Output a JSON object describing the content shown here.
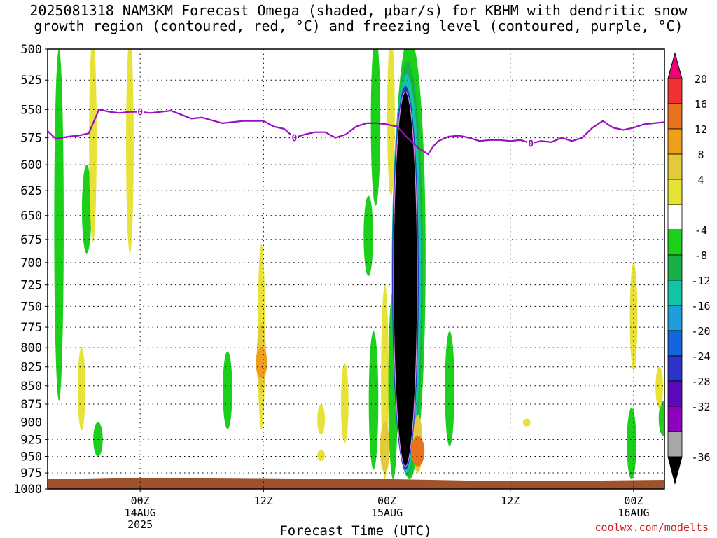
{
  "title_line1": "2025081318 NAM3KM Forecast Omega (shaded, μbar/s) for KBHM with dendritic snow",
  "title_line2": "growth region (contoured, red, °C) and freezing level (contoured, purple, °C)",
  "credit": "coolwx.com/modelts",
  "chart_data": {
    "type": "heatmap",
    "title": "2025081318 NAM3KM Forecast Omega (shaded, μbar/s) for KBHM with dendritic snow growth region (contoured, red, °C) and freezing level (contoured, purple, °C)",
    "xlabel": "Forecast Time (UTC)",
    "ylabel": "",
    "x_range_hours": [
      -3,
      57
    ],
    "ylim": [
      1000,
      500
    ],
    "y_scale": "log-pressure",
    "grid": true,
    "y_ticks": [
      500,
      525,
      550,
      575,
      600,
      625,
      650,
      675,
      700,
      725,
      750,
      775,
      800,
      825,
      850,
      875,
      900,
      925,
      950,
      975,
      1000
    ],
    "x_ticks": [
      {
        "hour": 6,
        "labels": [
          "00Z",
          "14AUG",
          "2025"
        ]
      },
      {
        "hour": 18,
        "labels": [
          "12Z"
        ]
      },
      {
        "hour": 30,
        "labels": [
          "00Z",
          "15AUG"
        ]
      },
      {
        "hour": 42,
        "labels": [
          "12Z"
        ]
      },
      {
        "hour": 54,
        "labels": [
          "00Z",
          "16AUG"
        ]
      }
    ],
    "colorbar": {
      "labels": [
        20,
        16,
        12,
        8,
        4,
        -4,
        -8,
        -12,
        -16,
        -20,
        -24,
        -28,
        -32,
        -36
      ],
      "colors": [
        "#ee0077",
        "#f03232",
        "#e8731f",
        "#ef9f1c",
        "#e4c93a",
        "#e7e237",
        "#ffffff",
        "#1bcf1b",
        "#19b04a",
        "#10c4a4",
        "#1f9edb",
        "#1565e0",
        "#2b33c9",
        "#5b09b9",
        "#8f00c0",
        "#a8a8a8",
        "#000000"
      ]
    },
    "freezing_level": {
      "label": "0",
      "color": "#9a10c0",
      "hours": [
        -3,
        -2.2,
        -1,
        0,
        1,
        2,
        3,
        4,
        5,
        6,
        7,
        9,
        11,
        12,
        14,
        16,
        18,
        19,
        20,
        21,
        22,
        23,
        24,
        25,
        26,
        27,
        28,
        29,
        30,
        31,
        32,
        33,
        34,
        34.5,
        35,
        36,
        37,
        38,
        39,
        40,
        41,
        42,
        43,
        44,
        45,
        46,
        47,
        48,
        49,
        50,
        51,
        52,
        53,
        54,
        55,
        56,
        57
      ],
      "pressure": [
        569,
        576,
        574,
        573,
        571,
        550,
        552,
        553,
        552,
        552,
        553,
        551,
        558,
        557,
        562,
        560,
        560,
        565,
        567,
        575,
        572,
        570,
        570,
        575,
        572,
        565,
        562,
        562,
        563,
        565,
        575,
        584,
        590,
        583,
        578,
        574,
        573,
        575,
        578,
        577,
        577,
        578,
        577,
        580,
        578,
        579,
        575,
        578,
        575,
        566,
        560,
        566,
        568,
        566,
        563,
        562,
        561
      ]
    },
    "regions": [
      {
        "value": -8,
        "hour": -1.9,
        "p_top": 500,
        "p_bot": 870
      },
      {
        "value": -8,
        "hour": 0.8,
        "p_top": 600,
        "p_bot": 690
      },
      {
        "value": 4,
        "hour": 1.4,
        "p_top": 490,
        "p_bot": 678
      },
      {
        "value": 4,
        "hour": 5.0,
        "p_top": 490,
        "p_bot": 690
      },
      {
        "value": 4,
        "hour": 5.0,
        "p_top": 548,
        "p_bot": 558
      },
      {
        "value": 4,
        "hour": 0.3,
        "p_top": 800,
        "p_bot": 912
      },
      {
        "value": -8,
        "hour": 1.9,
        "p_top": 900,
        "p_bot": 950
      },
      {
        "value": -8,
        "hour": 14.5,
        "p_top": 805,
        "p_bot": 910
      },
      {
        "value": 4,
        "hour": 17.8,
        "p_top": 680,
        "p_bot": 910
      },
      {
        "value": 8,
        "hour": 17.8,
        "p_top": 770,
        "p_bot": 860
      },
      {
        "value": 12,
        "hour": 17.8,
        "p_top": 800,
        "p_bot": 840
      },
      {
        "value": 4,
        "hour": 23.6,
        "p_top": 875,
        "p_bot": 918
      },
      {
        "value": 4,
        "hour": 23.6,
        "p_top": 940,
        "p_bot": 957
      },
      {
        "value": 4,
        "hour": 25.9,
        "p_top": 820,
        "p_bot": 930
      },
      {
        "value": -8,
        "hour": 28.2,
        "p_top": 630,
        "p_bot": 715
      },
      {
        "value": -8,
        "hour": 28.7,
        "p_top": 780,
        "p_bot": 970
      },
      {
        "value": -8,
        "hour": 28.9,
        "p_top": 490,
        "p_bot": 640
      },
      {
        "value": 4,
        "hour": 29.8,
        "p_top": 725,
        "p_bot": 985
      },
      {
        "value": 8,
        "hour": 29.8,
        "p_top": 900,
        "p_bot": 975
      },
      {
        "value": 4,
        "hour": 30.4,
        "p_top": 490,
        "p_bot": 630
      },
      {
        "value": -8,
        "hour": 30.6,
        "p_top": 730,
        "p_bot": 985
      },
      {
        "value": -8,
        "hour": 32.2,
        "p_top": 490,
        "p_bot": 985
      },
      {
        "value": -12,
        "hour": 32.0,
        "p_top": 510,
        "p_bot": 980
      },
      {
        "value": -16,
        "hour": 31.9,
        "p_top": 520,
        "p_bot": 975
      },
      {
        "value": -28,
        "hour": 31.8,
        "p_top": 530,
        "p_bot": 970
      },
      {
        "value": -36,
        "hour": 31.8,
        "p_top": 535,
        "p_bot": 965
      },
      {
        "value": 8,
        "hour": 33.0,
        "p_top": 890,
        "p_bot": 975
      },
      {
        "value": 16,
        "hour": 33.0,
        "p_top": 920,
        "p_bot": 965
      },
      {
        "value": -8,
        "hour": 36.1,
        "p_top": 780,
        "p_bot": 935
      },
      {
        "value": 4,
        "hour": 43.6,
        "p_top": 895,
        "p_bot": 906
      },
      {
        "value": 4,
        "hour": 54.0,
        "p_top": 700,
        "p_bot": 830
      },
      {
        "value": -8,
        "hour": 53.8,
        "p_top": 880,
        "p_bot": 985
      },
      {
        "value": -8,
        "hour": 56.9,
        "p_top": 870,
        "p_bot": 920
      },
      {
        "value": 4,
        "hour": 56.5,
        "p_top": 825,
        "p_bot": 880
      }
    ]
  }
}
